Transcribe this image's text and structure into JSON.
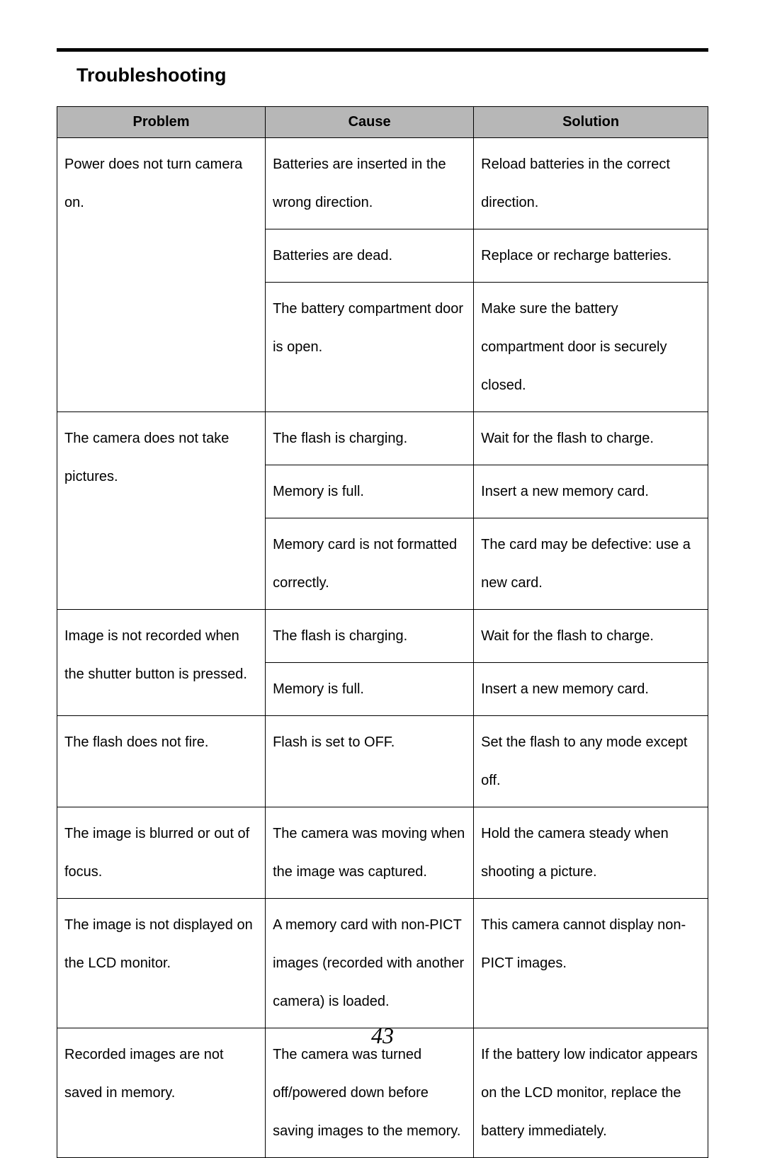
{
  "title": "Troubleshooting",
  "table": {
    "header_bg": "#b7b7b7",
    "border_color": "#000000",
    "font_size_header": 20,
    "font_size_cell": 20,
    "columns": [
      "Problem",
      "Cause",
      "Solution"
    ],
    "rows": [
      {
        "problem": "Power does not turn camera on.",
        "pairs": [
          {
            "cause": "Batteries are inserted in the wrong direction.",
            "solution": "Reload batteries in the correct direction."
          },
          {
            "cause": "Batteries are dead.",
            "solution": "Replace or recharge batteries."
          },
          {
            "cause": "The battery compartment door is open.",
            "solution": "Make sure the battery compartment door is securely closed."
          }
        ]
      },
      {
        "problem": "The camera does not take pictures.",
        "pairs": [
          {
            "cause": "The flash is charging.",
            "solution": "Wait for the flash to charge."
          },
          {
            "cause": "Memory is full.",
            "solution": "Insert a new memory card."
          },
          {
            "cause": "Memory card is not formatted correctly.",
            "solution": "The card may be defective: use a new card."
          }
        ]
      },
      {
        "problem": "Image is not recorded when the shutter button is pressed.",
        "pairs": [
          {
            "cause": "The flash is charging.",
            "solution": "Wait for the flash to charge."
          },
          {
            "cause": "Memory is full.",
            "solution": "Insert a new memory card."
          }
        ]
      },
      {
        "problem": "The flash does not fire.",
        "pairs": [
          {
            "cause": "Flash is set to OFF.",
            "solution": "Set the flash to any mode except off."
          }
        ]
      },
      {
        "problem": "The image is blurred or out of focus.",
        "pairs": [
          {
            "cause": "The camera was moving when the image was captured.",
            "solution": "Hold the camera steady when shooting a picture."
          }
        ]
      },
      {
        "problem": "The image is not displayed on the LCD monitor.",
        "pairs": [
          {
            "cause": "A memory card with non-PICT images (recorded with another camera) is loaded.",
            "solution": "This camera cannot display non-PICT images."
          }
        ]
      },
      {
        "problem": "Recorded images are not saved in memory.",
        "pairs": [
          {
            "cause": "The camera was turned off/powered down before saving images to the memory.",
            "solution": "If the battery low indicator appears on the LCD monitor, replace the battery immediately."
          }
        ]
      }
    ]
  },
  "page_number": "43",
  "colors": {
    "page_bg": "#ffffff",
    "text": "#000000",
    "rule": "#000000"
  }
}
